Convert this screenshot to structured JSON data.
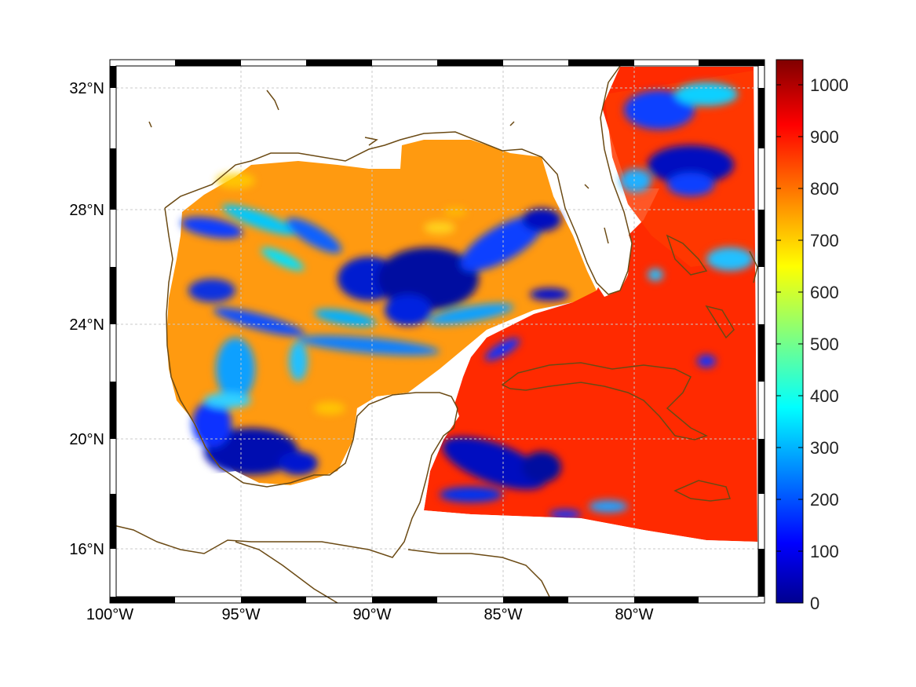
{
  "map": {
    "lon_ticks": [
      "100°W",
      "95°W",
      "90°W",
      "85°W",
      "80°W"
    ],
    "lat_ticks": [
      "32°N",
      "28°N",
      "24°N",
      "20°N",
      "16°N"
    ],
    "lon_range": [
      -100,
      -74.9
    ],
    "lat_range": [
      14.9,
      33.0
    ],
    "grid": true,
    "frame": "black-white checkered"
  },
  "colorbar": {
    "colormap": "jet",
    "range": [
      0,
      1050
    ],
    "ticks": [
      "1000",
      "900",
      "800",
      "700",
      "600",
      "500",
      "400",
      "300",
      "200",
      "100",
      "0"
    ],
    "colors": [
      "#00008f",
      "#0000ff",
      "#00ffff",
      "#ffff00",
      "#ff0000",
      "#800000"
    ]
  },
  "colors": {
    "coastline": "#6b4a14",
    "grid": "#c8c8c8"
  }
}
